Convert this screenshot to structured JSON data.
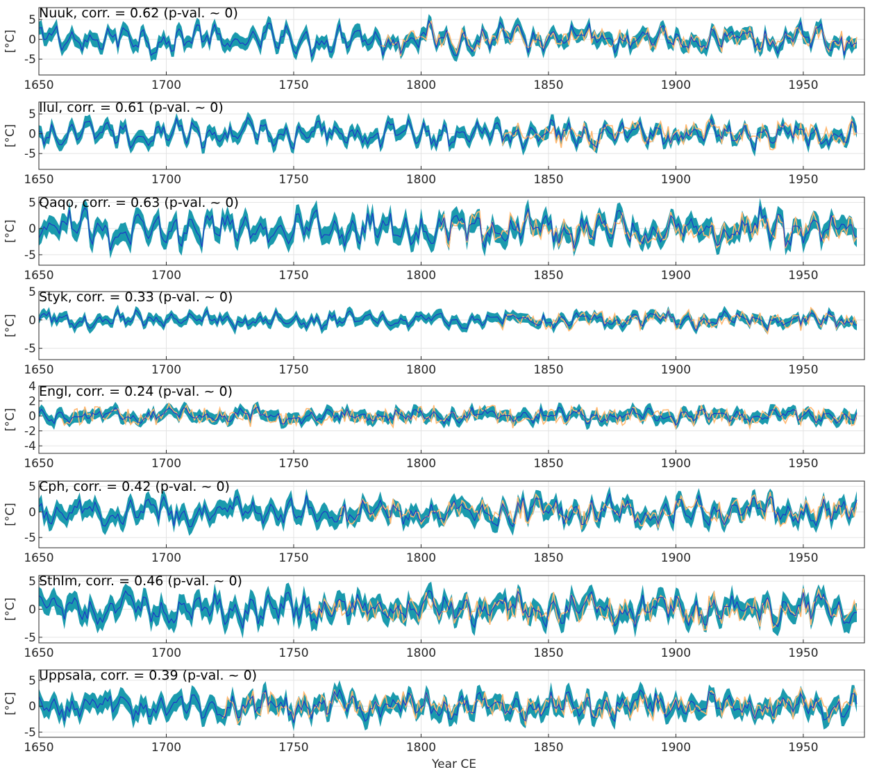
{
  "figure": {
    "xlabel": "Year CE",
    "colors": {
      "band": "#1a9aad",
      "recon": "#1f2fc8",
      "obs": "#ffb870"
    }
  },
  "chart_data": [
    {
      "type": "line",
      "title": "Nuuk, corr. = 0.62 (p-val. ~ 0)",
      "ylabel": "[°C]",
      "xlim": [
        1650,
        1974
      ],
      "xticks": [
        1650,
        1700,
        1750,
        1800,
        1850,
        1900,
        1950
      ],
      "ylim": [
        -9,
        8
      ],
      "yticks": [
        -5,
        0,
        5
      ],
      "series": [
        {
          "x_start": 1650,
          "x_end": 1971,
          "mean_amp": 3.2,
          "band_halfwidth": 1.6
        },
        {
          "x_start": 1784,
          "x_end": 1971,
          "amp": 2.6,
          "note_obs": true
        }
      ]
    },
    {
      "type": "line",
      "title": "Ilul, corr. = 0.61 (p-val. ~ 0)",
      "ylabel": "[°C]",
      "xlim": [
        1650,
        1974
      ],
      "xticks": [
        1650,
        1700,
        1750,
        1800,
        1850,
        1900,
        1950
      ],
      "ylim": [
        -9,
        8
      ],
      "yticks": [
        -5,
        0,
        5
      ],
      "series": [
        {
          "x_start": 1650,
          "x_end": 1971,
          "mean_amp": 3.0,
          "band_halfwidth": 1.5
        },
        {
          "x_start": 1832,
          "x_end": 1971,
          "amp": 3.2,
          "note_obs": true
        }
      ]
    },
    {
      "type": "line",
      "title": "Qaqo, corr. = 0.63 (p-val. ~ 0)",
      "ylabel": "[°C]",
      "xlim": [
        1650,
        1974
      ],
      "xticks": [
        1650,
        1700,
        1750,
        1800,
        1850,
        1900,
        1950
      ],
      "ylim": [
        -7,
        6
      ],
      "yticks": [
        -5,
        0,
        5
      ],
      "series": [
        {
          "x_start": 1650,
          "x_end": 1971,
          "mean_amp": 3.0,
          "band_halfwidth": 1.6
        },
        {
          "x_start": 1807,
          "x_end": 1971,
          "amp": 2.6,
          "note_obs": true
        }
      ]
    },
    {
      "type": "line",
      "title": "Styk, corr. = 0.33 (p-val. ~ 0)",
      "ylabel": "[°C]",
      "xlim": [
        1650,
        1974
      ],
      "xticks": [
        1650,
        1700,
        1750,
        1800,
        1850,
        1900,
        1950
      ],
      "ylim": [
        -7,
        5
      ],
      "yticks": [
        -5,
        0,
        5
      ],
      "series": [
        {
          "x_start": 1650,
          "x_end": 1971,
          "mean_amp": 1.3,
          "band_halfwidth": 0.8
        },
        {
          "x_start": 1830,
          "x_end": 1971,
          "amp": 1.6,
          "note_obs": true
        }
      ]
    },
    {
      "type": "line",
      "title": "Engl, corr. = 0.24 (p-val. ~ 0)",
      "ylabel": "[°C]",
      "xlim": [
        1650,
        1974
      ],
      "xticks": [
        1650,
        1700,
        1750,
        1800,
        1850,
        1900,
        1950
      ],
      "ylim": [
        -5,
        4
      ],
      "yticks": [
        -4,
        -2,
        0,
        2,
        4
      ],
      "series": [
        {
          "x_start": 1650,
          "x_end": 1971,
          "mean_amp": 0.9,
          "band_halfwidth": 0.7
        },
        {
          "x_start": 1659,
          "x_end": 1971,
          "amp": 1.4,
          "note_obs": true
        }
      ]
    },
    {
      "type": "line",
      "title": "Cph, corr. = 0.42 (p-val. ~ 0)",
      "ylabel": "[°C]",
      "xlim": [
        1650,
        1974
      ],
      "xticks": [
        1650,
        1700,
        1750,
        1800,
        1850,
        1900,
        1950
      ],
      "ylim": [
        -7,
        6
      ],
      "yticks": [
        -5,
        0,
        5
      ],
      "series": [
        {
          "x_start": 1650,
          "x_end": 1971,
          "mean_amp": 2.4,
          "band_halfwidth": 1.5
        },
        {
          "x_start": 1768,
          "x_end": 1971,
          "amp": 2.4,
          "note_obs": true
        }
      ]
    },
    {
      "type": "line",
      "title": "Sthlm, corr. = 0.46 (p-val. ~ 0)",
      "ylabel": "[°C]",
      "xlim": [
        1650,
        1974
      ],
      "xticks": [
        1650,
        1700,
        1750,
        1800,
        1850,
        1900,
        1950
      ],
      "ylim": [
        -6,
        6
      ],
      "yticks": [
        -5,
        0,
        5
      ],
      "series": [
        {
          "x_start": 1650,
          "x_end": 1971,
          "mean_amp": 2.4,
          "band_halfwidth": 1.6
        },
        {
          "x_start": 1756,
          "x_end": 1971,
          "amp": 2.6,
          "note_obs": true
        }
      ]
    },
    {
      "type": "line",
      "title": "Uppsala, corr. = 0.39 (p-val. ~ 0)",
      "ylabel": "[°C]",
      "xlim": [
        1650,
        1974
      ],
      "xticks": [
        1650,
        1700,
        1750,
        1800,
        1850,
        1900,
        1950
      ],
      "ylim": [
        -6,
        7
      ],
      "yticks": [
        -5,
        0,
        5
      ],
      "series": [
        {
          "x_start": 1650,
          "x_end": 1971,
          "mean_amp": 2.4,
          "band_halfwidth": 1.6
        },
        {
          "x_start": 1722,
          "x_end": 1971,
          "amp": 2.6,
          "note_obs": true
        }
      ]
    }
  ]
}
